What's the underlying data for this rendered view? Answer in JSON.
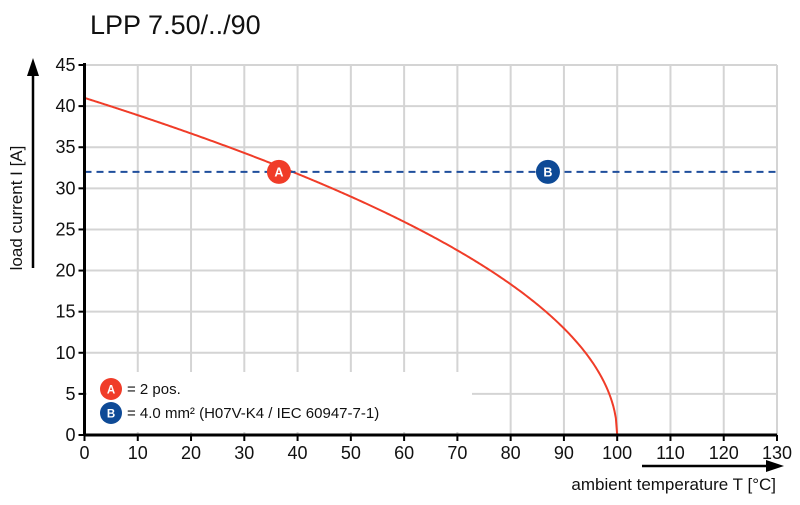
{
  "chart_data": {
    "type": "line",
    "title": "LPP 7.50/../90",
    "xlabel": "ambient temperature T [°C]",
    "ylabel": "load current I [A]",
    "xlim": [
      0,
      130
    ],
    "ylim": [
      0,
      45
    ],
    "xticks": [
      0,
      10,
      20,
      30,
      40,
      50,
      60,
      70,
      80,
      90,
      100,
      110,
      120,
      130
    ],
    "yticks": [
      0,
      5,
      10,
      15,
      20,
      25,
      30,
      35,
      40,
      45
    ],
    "grid": true,
    "series": [
      {
        "color": "#f03c28",
        "style": "solid",
        "x": [
          0,
          10,
          20,
          30,
          36.5,
          40,
          50,
          60,
          70,
          80,
          90,
          95,
          98,
          100
        ],
        "y": [
          41,
          38.9,
          36.7,
          34.3,
          32,
          31.8,
          29,
          25.9,
          22.5,
          18.3,
          13,
          9.2,
          5.8,
          0
        ]
      },
      {
        "color": "#1f4e9c",
        "style": "dashed",
        "x": [
          0,
          130
        ],
        "y": [
          32,
          32
        ]
      }
    ],
    "markers": [
      {
        "label": "A",
        "x": 36.5,
        "y": 32,
        "color": "#f03c28"
      },
      {
        "label": "B",
        "x": 87,
        "y": 32,
        "color": "#0e4a96"
      }
    ],
    "legend": {
      "placement": "bottom-left",
      "items": [
        {
          "badge": "A",
          "text": "= 2 pos.",
          "color": "#f03c28"
        },
        {
          "badge": "B",
          "text": "= 4.0 mm² (H07V-K4 / IEC 60947-7-1)",
          "color": "#0e4a96"
        }
      ]
    }
  }
}
